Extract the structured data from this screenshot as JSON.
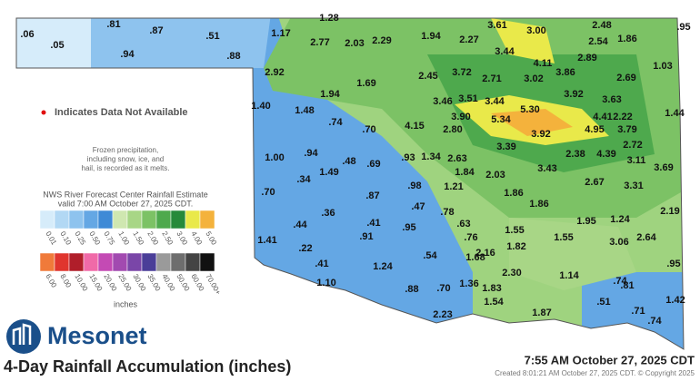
{
  "map_title": "4-Day Rainfall Accumulation (inches)",
  "timestamp": "7:55 AM October 27, 2025 CDT",
  "created": "Created 8:01:21 AM October 27, 2025 CDT. © Copyright 2025",
  "brand": "Mesonet",
  "not_available_note": "Indicates Data Not Available",
  "frozen_note": [
    "Frozen precipitation,",
    "including snow, ice, and",
    "hail, is recorded as it melts."
  ],
  "legend": {
    "source": "NWS River Forecast Center Rainfall Estimate",
    "valid": "valid 7:00 AM October 27, 2025 CDT.",
    "unit": "inches",
    "row1": [
      {
        "label": "0.01",
        "color": "#d6ecfa"
      },
      {
        "label": "0.10",
        "color": "#b2d8f4"
      },
      {
        "label": "0.25",
        "color": "#8ec3ee"
      },
      {
        "label": "0.50",
        "color": "#64a7e4"
      },
      {
        "label": "0.75",
        "color": "#3f8ad6"
      },
      {
        "label": "1.00",
        "color": "#cfe7b0"
      },
      {
        "label": "1.50",
        "color": "#a8d686"
      },
      {
        "label": "2.00",
        "color": "#7cc265"
      },
      {
        "label": "2.50",
        "color": "#4ea94d"
      },
      {
        "label": "3.00",
        "color": "#268a3a"
      },
      {
        "label": "4.00",
        "color": "#e9e94a"
      },
      {
        "label": "5.00",
        "color": "#f4b23c"
      }
    ],
    "row2": [
      {
        "label": "6.00",
        "color": "#f07a3a"
      },
      {
        "label": "8.00",
        "color": "#e0352e"
      },
      {
        "label": "10.00",
        "color": "#b01e2a"
      },
      {
        "label": "15.00",
        "color": "#f06aa8"
      },
      {
        "label": "20.00",
        "color": "#c44ab4"
      },
      {
        "label": "25.00",
        "color": "#a24ab0"
      },
      {
        "label": "30.00",
        "color": "#7a46a8"
      },
      {
        "label": "35.00",
        "color": "#4a3e98"
      },
      {
        "label": "40.00",
        "color": "#9a9a9a"
      },
      {
        "label": "50.00",
        "color": "#6e6e6e"
      },
      {
        "label": "60.00",
        "color": "#444444"
      },
      {
        "label": "70.00+",
        "color": "#111111"
      }
    ]
  },
  "rainfall_labels": [
    ".06",
    ".05",
    ".81",
    ".87",
    ".94",
    ".51",
    ".88",
    "1.28",
    "1.17",
    "2.77",
    "2.03",
    "2.29",
    "1.94",
    "2.27",
    "3.61",
    "3.00",
    "2.48",
    ".95",
    "2.54",
    "1.86",
    "3.44",
    "2.89",
    "4.11",
    "1.03",
    "2.92",
    "1.69",
    "2.45",
    "3.72",
    "2.71",
    "3.02",
    "3.86",
    "2.69",
    "1.94",
    "3.46",
    "3.51",
    "3.44",
    "3.92",
    "3.63",
    "1.40",
    "1.48",
    "3.90",
    "5.34",
    "5.30",
    "4.41",
    "2.22",
    "1.44",
    ".74",
    ".70",
    "4.15",
    "2.80",
    "3.92",
    "4.95",
    "3.79",
    "2.72",
    "3.39",
    "1.00",
    ".94",
    ".48",
    ".69",
    ".93",
    "1.34",
    "2.63",
    "2.38",
    "4.39",
    "3.11",
    "3.69",
    "1.49",
    ".34",
    "1.84",
    "2.03",
    "3.43",
    ".98",
    "1.21",
    "2.67",
    "3.31",
    ".70",
    ".87",
    "1.86",
    "1.86",
    ".47",
    ".36",
    ".78",
    "1.95",
    "1.24",
    "2.19",
    ".44",
    ".41",
    ".95",
    ".63",
    "1.55",
    ".91",
    ".76",
    "1.55",
    "3.06",
    "2.64",
    "1.41",
    ".22",
    "1.82",
    "2.16",
    ".54",
    "1.68",
    ".41",
    "1.24",
    ".95",
    "2.30",
    "1.14",
    ".74",
    "1.10",
    ".88",
    ".70",
    "1.36",
    "1.83",
    ".51",
    ".81",
    "1.54",
    "1.42",
    "1.87",
    ".71",
    "2.23",
    ".74"
  ]
}
